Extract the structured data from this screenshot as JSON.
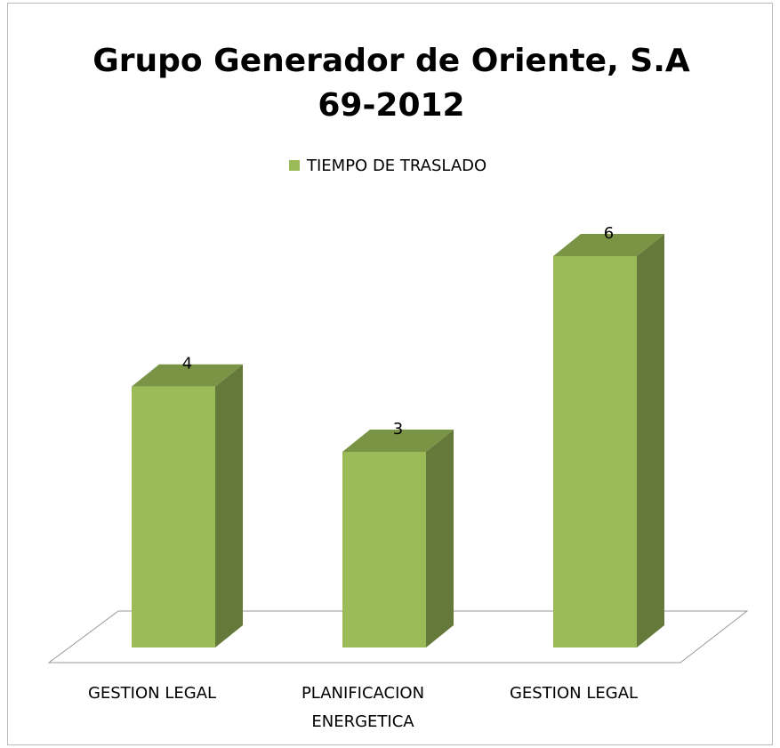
{
  "chart_data": {
    "type": "bar3d",
    "title": "Grupo Generador de Oriente, S.A",
    "subtitle": "69-2012",
    "categories": [
      "GESTION LEGAL",
      "PLANIFICACION ENERGETICA",
      "GESTION LEGAL"
    ],
    "series": [
      {
        "name": "TIEMPO DE TRASLADO",
        "color": "#9bbb59",
        "values": [
          4,
          3,
          6
        ]
      }
    ],
    "ylim": [
      0,
      6
    ],
    "legend": "top"
  }
}
